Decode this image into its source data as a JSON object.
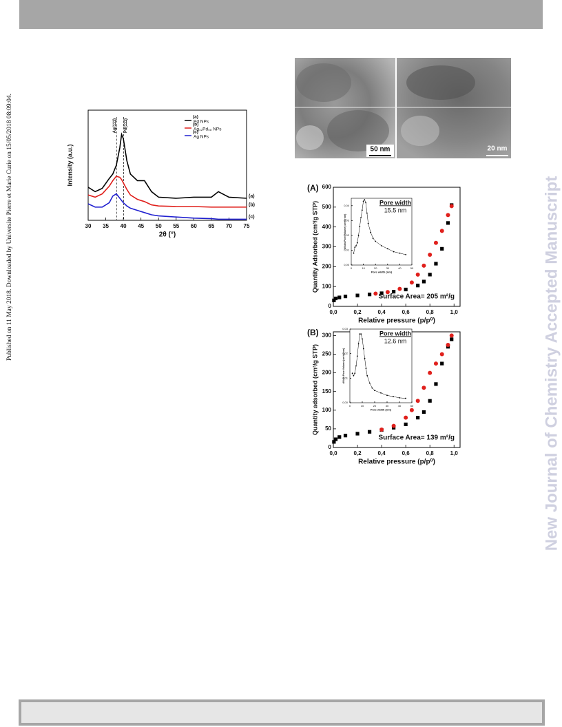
{
  "side_note": "Published on 11 May 2018. Downloaded by Universite Pierre et Marie Curie on 15/05/2018 08:09:04.",
  "watermark": "New Journal of Chemistry Accepted Manuscript",
  "tem_images": {
    "scale_bars": [
      "50 nm",
      "20 nm"
    ]
  },
  "chart_data": [
    {
      "type": "line",
      "x_label": "2θ (°)",
      "y_label": "Intensity (a.u.)",
      "xlim": [
        30,
        75
      ],
      "ylim": [
        0,
        10
      ],
      "xticks": [
        30,
        35,
        40,
        45,
        50,
        55,
        60,
        65,
        70,
        75
      ],
      "reference_lines": [
        {
          "x": 38.1,
          "label": "Ag(111)"
        },
        {
          "x": 40.1,
          "label": "Pd(111)"
        }
      ],
      "x": [
        30,
        32,
        34,
        36,
        37,
        38,
        39,
        39.5,
        40,
        41,
        42,
        44,
        46,
        48,
        50,
        55,
        60,
        65,
        67,
        70,
        75
      ],
      "series": [
        {
          "name": "Pd NPs",
          "label": "(a)",
          "color": "#000000",
          "values": [
            3.0,
            2.6,
            2.9,
            3.8,
            4.2,
            5.0,
            6.6,
            7.8,
            7.4,
            5.4,
            4.2,
            3.6,
            3.6,
            2.6,
            2.1,
            2.0,
            2.1,
            2.1,
            2.6,
            2.1,
            2.0
          ]
        },
        {
          "name": "Ag₄₂Pd₅₈ NPs",
          "label": "(b)",
          "color": "#e0201c",
          "values": [
            2.3,
            2.1,
            2.4,
            3.1,
            3.6,
            4.0,
            3.9,
            3.7,
            3.4,
            2.8,
            2.3,
            1.9,
            1.7,
            1.4,
            1.3,
            1.25,
            1.25,
            1.2,
            1.2,
            1.2,
            1.2
          ]
        },
        {
          "name": "Ag NPs",
          "label": "(c)",
          "color": "#2020d0",
          "values": [
            1.5,
            1.2,
            1.2,
            1.6,
            2.2,
            2.4,
            2.0,
            1.8,
            1.6,
            1.3,
            1.1,
            0.9,
            0.7,
            0.5,
            0.4,
            0.3,
            0.2,
            0.15,
            0.1,
            0.1,
            0.1
          ]
        }
      ]
    },
    {
      "type": "scatter",
      "panel_label": "(A)",
      "x_label": "Relative pressure (p/p⁰)",
      "y_label": "Quantity Adsorbed (cm³/g STP)",
      "annotation": "Surface Area= 205 m²/g",
      "xlim": [
        0,
        1.05
      ],
      "ylim": [
        0,
        600
      ],
      "xticks": [
        {
          "value": 0,
          "label": "0,0"
        },
        {
          "value": 0.2,
          "label": "0,2"
        },
        {
          "value": 0.4,
          "label": "0,4"
        },
        {
          "value": 0.6,
          "label": "0,6"
        },
        {
          "value": 0.8,
          "label": "0,8"
        },
        {
          "value": 1,
          "label": "1,0"
        }
      ],
      "yticks": [
        0,
        100,
        200,
        300,
        400,
        500,
        600
      ],
      "series": [
        {
          "color": "#000000",
          "marker": "square",
          "x": [
            0.005,
            0.02,
            0.05,
            0.1,
            0.2,
            0.3,
            0.4,
            0.5,
            0.6,
            0.7,
            0.75,
            0.8,
            0.85,
            0.9,
            0.95,
            0.98
          ],
          "values": [
            30,
            40,
            45,
            50,
            55,
            60,
            66,
            74,
            85,
            105,
            125,
            160,
            215,
            290,
            420,
            510
          ]
        },
        {
          "color": "#e0201c",
          "marker": "circle",
          "x": [
            0.35,
            0.45,
            0.55,
            0.65,
            0.7,
            0.75,
            0.8,
            0.85,
            0.9,
            0.95,
            0.98
          ],
          "values": [
            64,
            72,
            88,
            120,
            160,
            205,
            260,
            320,
            380,
            460,
            505
          ]
        }
      ],
      "inset": {
        "type": "line",
        "title": "Pore width",
        "annotation": "15.5 nm",
        "x_label": "Pore width (nm)",
        "y_label": "dV/dw Pore Volume (cm³/g·nm)",
        "xlim": [
          0,
          50
        ],
        "ylim": [
          0,
          0.045
        ],
        "xticks": [
          0,
          10,
          20,
          30,
          40,
          50
        ],
        "yticks": [
          {
            "value": 0,
            "label": "0,00"
          },
          {
            "value": 0.01,
            "label": "0,01"
          },
          {
            "value": 0.02,
            "label": "0,02"
          },
          {
            "value": 0.03,
            "label": "0,03"
          },
          {
            "value": 0.04,
            "label": "0,04"
          }
        ],
        "x": [
          2,
          3,
          4,
          5,
          6,
          7,
          8,
          9,
          10,
          11,
          12,
          13,
          14,
          16,
          18,
          20,
          25,
          30,
          35,
          40,
          45
        ],
        "series": [
          {
            "color": "#000000",
            "values": [
              0.008,
              0.012,
              0.013,
              0.015,
              0.02,
              0.026,
              0.032,
              0.037,
              0.043,
              0.044,
              0.042,
              0.035,
              0.028,
              0.022,
              0.018,
              0.016,
              0.013,
              0.011,
              0.009,
              0.008,
              0.007
            ]
          }
        ]
      }
    },
    {
      "type": "scatter",
      "panel_label": "(B)",
      "x_label": "Relative pressure (p/p⁰)",
      "y_label": "Quantity adsorbed (cm³/g STP)",
      "annotation": "Surface Area= 139 m²/g",
      "xlim": [
        0,
        1.05
      ],
      "ylim": [
        0,
        310
      ],
      "xticks": [
        {
          "value": 0,
          "label": "0,0"
        },
        {
          "value": 0.2,
          "label": "0,2"
        },
        {
          "value": 0.4,
          "label": "0,4"
        },
        {
          "value": 0.6,
          "label": "0,6"
        },
        {
          "value": 0.8,
          "label": "0,8"
        },
        {
          "value": 1,
          "label": "1,0"
        }
      ],
      "yticks": [
        0,
        50,
        100,
        150,
        200,
        250,
        300
      ],
      "series": [
        {
          "color": "#000000",
          "marker": "square",
          "x": [
            0.005,
            0.02,
            0.05,
            0.1,
            0.2,
            0.3,
            0.4,
            0.5,
            0.6,
            0.7,
            0.75,
            0.8,
            0.85,
            0.9,
            0.95,
            0.98
          ],
          "values": [
            15,
            22,
            28,
            32,
            37,
            42,
            47,
            53,
            62,
            80,
            95,
            125,
            170,
            225,
            270,
            290
          ]
        },
        {
          "color": "#e0201c",
          "marker": "circle",
          "x": [
            0.4,
            0.5,
            0.6,
            0.65,
            0.7,
            0.75,
            0.8,
            0.85,
            0.9,
            0.95,
            0.98
          ],
          "values": [
            48,
            58,
            80,
            100,
            125,
            160,
            200,
            225,
            250,
            275,
            300
          ]
        }
      ],
      "inset": {
        "type": "line",
        "title": "Pore width",
        "annotation": "12.6 nm",
        "x_label": "Pore width (nm)",
        "y_label": "dV/dw Pore Volume (cm³/g·nm)",
        "xlim": [
          0,
          50
        ],
        "ylim": [
          0,
          0.03
        ],
        "xticks": [
          0,
          10,
          20,
          30,
          40,
          50
        ],
        "yticks": [
          {
            "value": 0,
            "label": "0,00"
          },
          {
            "value": 0.01,
            "label": "0,01"
          },
          {
            "value": 0.02,
            "label": "0,02"
          },
          {
            "value": 0.03,
            "label": "0,03"
          }
        ],
        "x": [
          2,
          3,
          4,
          5,
          6,
          7,
          8,
          9,
          10,
          11,
          12,
          13,
          14,
          16,
          18,
          20,
          25,
          30,
          35,
          40,
          45
        ],
        "series": [
          {
            "color": "#000000",
            "values": [
              0.012,
              0.011,
              0.012,
              0.015,
              0.019,
              0.024,
              0.028,
              0.028,
              0.026,
              0.022,
              0.018,
              0.014,
              0.011,
              0.008,
              0.006,
              0.005,
              0.004,
              0.003,
              0.0025,
              0.002,
              0.0018
            ]
          }
        ]
      }
    }
  ]
}
